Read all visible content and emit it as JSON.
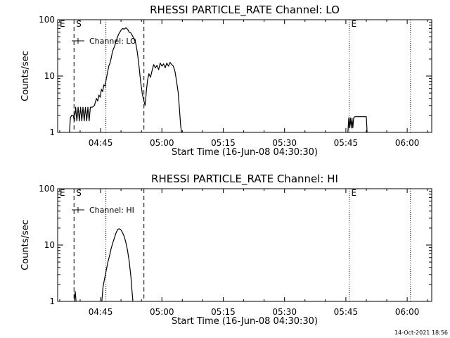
{
  "footer_timestamp": "14-Oct-2021 18:56",
  "chart_data": [
    {
      "type": "line",
      "title": "RHESSI PARTICLE_RATE Channel: LO",
      "xlabel": "Start Time (16-Jun-08 04:30:30)",
      "ylabel": "Counts/sec",
      "yscale": "log",
      "ylim": [
        1,
        100
      ],
      "xlim_minutes": [
        34.5,
        126.0
      ],
      "x_ticks": [
        {
          "minute": 45,
          "label": "04:45"
        },
        {
          "minute": 60,
          "label": "05:00"
        },
        {
          "minute": 75,
          "label": "05:15"
        },
        {
          "minute": 90,
          "label": "05:30"
        },
        {
          "minute": 105,
          "label": "05:45"
        },
        {
          "minute": 120,
          "label": "06:00"
        }
      ],
      "y_ticks": [
        {
          "value": 1,
          "label": "1"
        },
        {
          "value": 10,
          "label": "10"
        },
        {
          "value": 100,
          "label": "100"
        }
      ],
      "legend": {
        "label": "Channel: LO",
        "position": "top-left"
      },
      "markers": [
        {
          "label": "E",
          "minute": 34.5,
          "style": "none"
        },
        {
          "label": "S",
          "minute": 38.5,
          "style": "dashed"
        },
        {
          "label": "",
          "minute": 46.3,
          "style": "dotted"
        },
        {
          "label": "",
          "minute": 55.6,
          "style": "dashed"
        },
        {
          "label": "E",
          "minute": 105.8,
          "style": "dotted"
        },
        {
          "label": "",
          "minute": 120.8,
          "style": "dotted"
        }
      ],
      "series": [
        {
          "name": "Channel: LO",
          "segments": [
            [
              [
                37.4,
                1
              ],
              [
                37.6,
                1.8
              ],
              [
                37.9,
                2.0
              ],
              [
                38.3,
                2.0
              ],
              [
                38.6,
                1.6
              ],
              [
                38.9,
                2.8
              ],
              [
                39.2,
                1.6
              ],
              [
                39.5,
                2.8
              ],
              [
                39.8,
                1.6
              ],
              [
                40.1,
                2.8
              ],
              [
                40.4,
                1.6
              ],
              [
                40.7,
                2.8
              ],
              [
                41.0,
                1.6
              ],
              [
                41.3,
                2.8
              ],
              [
                41.6,
                1.6
              ],
              [
                41.9,
                2.8
              ],
              [
                42.2,
                1.6
              ],
              [
                42.5,
                2.8
              ],
              [
                43.0,
                2.8
              ],
              [
                43.5,
                3.0
              ],
              [
                44.0,
                4.0
              ],
              [
                44.3,
                3.6
              ],
              [
                44.6,
                4.6
              ],
              [
                44.9,
                4.2
              ],
              [
                45.2,
                5.8
              ],
              [
                45.5,
                5.3
              ],
              [
                45.8,
                7.0
              ],
              [
                46.1,
                6.6
              ],
              [
                46.4,
                9.0
              ],
              [
                46.7,
                11.5
              ],
              [
                47.0,
                15.0
              ],
              [
                47.3,
                17.0
              ],
              [
                47.6,
                21.0
              ],
              [
                47.9,
                27.0
              ],
              [
                48.2,
                31.0
              ],
              [
                48.5,
                35.0
              ],
              [
                48.8,
                42.0
              ],
              [
                49.1,
                48.0
              ],
              [
                49.4,
                55.0
              ],
              [
                49.7,
                60.0
              ],
              [
                50.0,
                65.0
              ],
              [
                50.4,
                70.0
              ],
              [
                50.8,
                68.0
              ],
              [
                51.2,
                72.0
              ],
              [
                51.6,
                68.0
              ],
              [
                52.0,
                60.0
              ],
              [
                52.4,
                58.0
              ],
              [
                52.8,
                52.0
              ],
              [
                53.2,
                45.0
              ],
              [
                53.6,
                38.0
              ],
              [
                54.0,
                26.0
              ],
              [
                54.4,
                15.0
              ],
              [
                54.8,
                8.0
              ],
              [
                55.2,
                4.8
              ],
              [
                55.6,
                3.6
              ],
              [
                55.9,
                3.0
              ],
              [
                56.2,
                5.5
              ],
              [
                56.5,
                8.5
              ],
              [
                56.8,
                11.0
              ],
              [
                57.2,
                9.5
              ],
              [
                57.6,
                12.5
              ],
              [
                58.0,
                16.0
              ],
              [
                58.4,
                14.0
              ],
              [
                58.8,
                15.5
              ],
              [
                59.2,
                13.0
              ],
              [
                59.6,
                17.0
              ],
              [
                60.0,
                15.0
              ],
              [
                60.4,
                16.5
              ],
              [
                60.8,
                14.0
              ],
              [
                61.2,
                17.0
              ],
              [
                61.6,
                15.0
              ],
              [
                62.0,
                17.5
              ],
              [
                62.4,
                16.0
              ],
              [
                62.8,
                15.0
              ],
              [
                63.2,
                12.0
              ],
              [
                63.6,
                8.0
              ],
              [
                64.0,
                5.0
              ],
              [
                64.3,
                2.5
              ],
              [
                64.6,
                1.3
              ],
              [
                64.8,
                1
              ]
            ],
            [
              [
                105.5,
                1
              ],
              [
                105.7,
                1.8
              ],
              [
                105.9,
                1.2
              ],
              [
                106.1,
                1.8
              ],
              [
                106.3,
                1.2
              ],
              [
                106.5,
                1.8
              ],
              [
                106.7,
                1.2
              ],
              [
                106.9,
                1.8
              ],
              [
                107.2,
                1.9
              ],
              [
                108.5,
                1.9
              ],
              [
                109.5,
                1.9
              ],
              [
                110.0,
                1.9
              ],
              [
                110.2,
                1
              ]
            ]
          ]
        }
      ]
    },
    {
      "type": "line",
      "title": "RHESSI PARTICLE_RATE Channel: HI",
      "xlabel": "Start Time (16-Jun-08 04:30:30)",
      "ylabel": "Counts/sec",
      "yscale": "log",
      "ylim": [
        1,
        100
      ],
      "xlim_minutes": [
        34.5,
        126.0
      ],
      "x_ticks": [
        {
          "minute": 45,
          "label": "04:45"
        },
        {
          "minute": 60,
          "label": "05:00"
        },
        {
          "minute": 75,
          "label": "05:15"
        },
        {
          "minute": 90,
          "label": "05:30"
        },
        {
          "minute": 105,
          "label": "05:45"
        },
        {
          "minute": 120,
          "label": "06:00"
        }
      ],
      "y_ticks": [
        {
          "value": 1,
          "label": "1"
        },
        {
          "value": 10,
          "label": "10"
        },
        {
          "value": 100,
          "label": "100"
        }
      ],
      "legend": {
        "label": "Channel: HI",
        "position": "top-left"
      },
      "markers": [
        {
          "label": "E",
          "minute": 34.5,
          "style": "none"
        },
        {
          "label": "S",
          "minute": 38.5,
          "style": "dashed"
        },
        {
          "label": "",
          "minute": 46.3,
          "style": "dotted"
        },
        {
          "label": "",
          "minute": 55.6,
          "style": "dashed"
        },
        {
          "label": "E",
          "minute": 105.8,
          "style": "dotted"
        },
        {
          "label": "",
          "minute": 120.8,
          "style": "dotted"
        }
      ],
      "series": [
        {
          "name": "Channel: HI",
          "segments": [
            [
              [
                38.6,
                1
              ],
              [
                38.8,
                1.5
              ],
              [
                39.0,
                1
              ]
            ],
            [
              [
                45.3,
                1
              ],
              [
                45.6,
                1.8
              ],
              [
                46.0,
                2.6
              ],
              [
                46.4,
                3.6
              ],
              [
                46.8,
                5.0
              ],
              [
                47.2,
                6.5
              ],
              [
                47.6,
                8.8
              ],
              [
                48.0,
                11.0
              ],
              [
                48.4,
                13.5
              ],
              [
                48.8,
                16.5
              ],
              [
                49.2,
                19.0
              ],
              [
                49.6,
                19.5
              ],
              [
                50.0,
                18.5
              ],
              [
                50.4,
                16.5
              ],
              [
                50.8,
                14.0
              ],
              [
                51.2,
                11.0
              ],
              [
                51.6,
                8.0
              ],
              [
                52.0,
                5.2
              ],
              [
                52.4,
                2.8
              ],
              [
                52.7,
                1.5
              ],
              [
                52.9,
                1
              ]
            ]
          ]
        }
      ]
    }
  ]
}
